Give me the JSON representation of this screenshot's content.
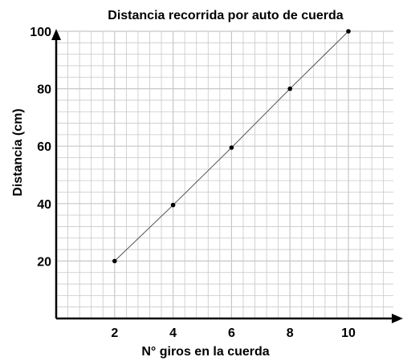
{
  "chart_data": {
    "type": "line",
    "title": "Distancia recorrida por auto de cuerda",
    "xlabel": "N° giros en la cuerda",
    "ylabel": "Distancia (cm)",
    "x": [
      2,
      4,
      6,
      8,
      10
    ],
    "y": [
      20,
      39.5,
      59.5,
      80,
      100
    ],
    "xlim": [
      0,
      12
    ],
    "ylim": [
      0,
      100
    ],
    "x_ticks": [
      2,
      4,
      6,
      8,
      10
    ],
    "y_ticks": [
      20,
      40,
      60,
      80,
      100
    ],
    "x_tick_labels": [
      "2",
      "4",
      "6",
      "8",
      "10"
    ],
    "y_tick_labels": [
      "20",
      "40",
      "60",
      "80",
      "100"
    ],
    "grid": true,
    "minor_grid_step": 0.4,
    "colors": {
      "line": "#555555",
      "grid": "#c8c8c8",
      "axis": "#000000",
      "marker": "#000000"
    }
  }
}
